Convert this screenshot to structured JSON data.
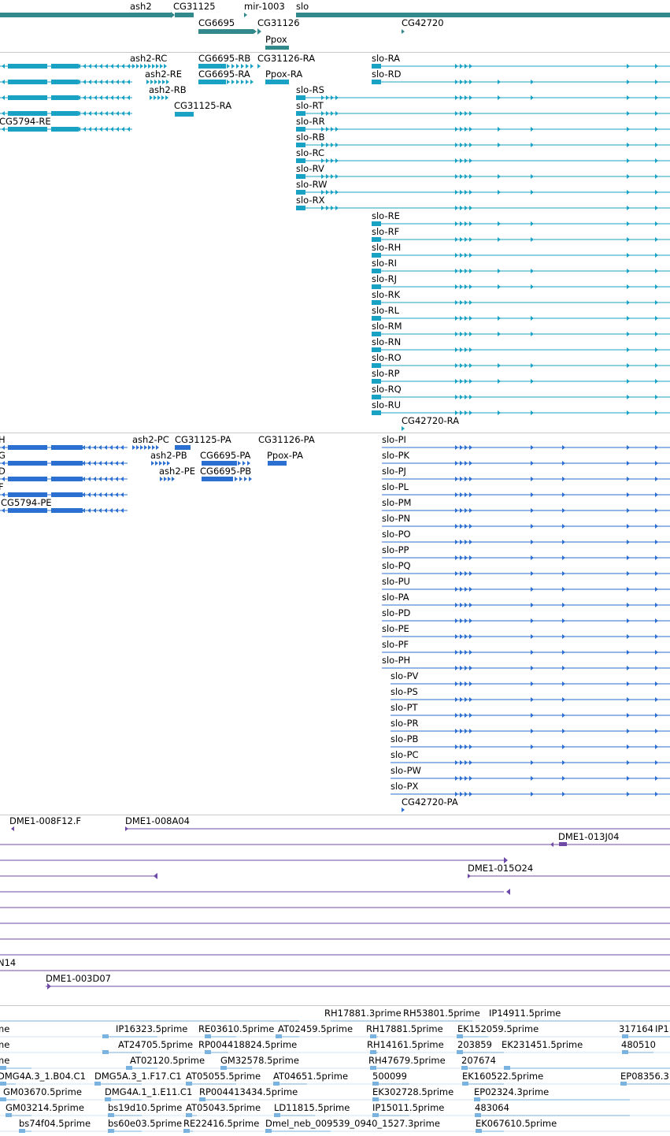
{
  "colors": {
    "gene": "#32898b",
    "transcript": "#1aa2c4",
    "protein": "#2b6fd0",
    "clone": "#6e4aa6",
    "est": "#7ab2e0",
    "separator": "#c9c9c9"
  },
  "tracks": {
    "genes": {
      "labels": [
        "ash2",
        "CG31125",
        "mir-1003",
        "slo",
        "CG6695",
        "CG31126",
        "CG42720",
        "Ppox"
      ]
    },
    "transcripts": {
      "labels": [
        "ash2-RC",
        "CG6695-RB",
        "CG31126-RA",
        "slo-RA",
        "ash2-RE",
        "CG6695-RA",
        "Ppox-RA",
        "slo-RD",
        "ash2-RB",
        "slo-RS",
        "CG31125-RA",
        "slo-RT",
        "CG5794-RE",
        "slo-RR",
        "slo-RB",
        "slo-RC",
        "slo-RV",
        "slo-RW",
        "slo-RX",
        "slo-RE",
        "slo-RF",
        "slo-RH",
        "slo-RI",
        "slo-RJ",
        "slo-RK",
        "slo-RL",
        "slo-RM",
        "slo-RN",
        "slo-RO",
        "slo-RP",
        "slo-RQ",
        "slo-RU",
        "CG42720-RA"
      ]
    },
    "proteins": {
      "labels": [
        "H",
        "ash2-PC",
        "CG31125-PA",
        "CG31126-PA",
        "slo-PI",
        "G",
        "ash2-PB",
        "CG6695-PA",
        "Ppox-PA",
        "slo-PK",
        "D",
        "ash2-PE",
        "CG6695-PB",
        "slo-PJ",
        "F",
        "slo-PL",
        "CG5794-PE",
        "slo-PM",
        "slo-PN",
        "slo-PO",
        "slo-PP",
        "slo-PQ",
        "slo-PU",
        "slo-PA",
        "slo-PD",
        "slo-PE",
        "slo-PF",
        "slo-PH",
        "slo-PV",
        "slo-PS",
        "slo-PT",
        "slo-PR",
        "slo-PB",
        "slo-PC",
        "slo-PW",
        "slo-PX",
        "CG42720-PA"
      ]
    },
    "clones": {
      "labels": [
        "DME1-008F12.F",
        "DME1-008A04",
        "DME1-013J04",
        "DME1-015O24",
        "N14",
        "DME1-003D07"
      ]
    },
    "ests": {
      "labels": [
        "RH17881.3prime",
        "RH53801.5prime",
        "IP14911.5prime",
        "me",
        "IP16323.5prime",
        "RE03610.5prime",
        "AT02459.5prime",
        "RH17881.5prime",
        "EK152059.5prime",
        "317164",
        "IP1",
        "me",
        "AT24705.5prime",
        "RP004418824.5prime",
        "RH14161.5prime",
        "203859",
        "EK231451.5prime",
        "480510",
        "me",
        "AT02120.5prime",
        "GM32578.5prime",
        "RH47679.5prime",
        "207674",
        "DMG4A.3_1.B04.C1",
        "DMG5A.3_1.F17.C1",
        "AT05055.5prime",
        "AT04651.5prime",
        "500099",
        "EK160522.5prime",
        "EP08356.3",
        "GM03670.5prime",
        "DMG4A.1_1.E11.C1",
        "RP004413434.5prime",
        "EK302728.5prime",
        "EP02324.3prime",
        "GM03214.5prime",
        "bs19d10.5prime",
        "AT05043.5prime",
        "LD11815.5prime",
        "IP15011.5prime",
        "483064",
        "bs74f04.5prime",
        "bs60e03.5prime",
        "RE22416.5prime",
        "Dmel_neb_009539_0940_1527.3prime",
        "EK067610.5prime"
      ]
    }
  }
}
